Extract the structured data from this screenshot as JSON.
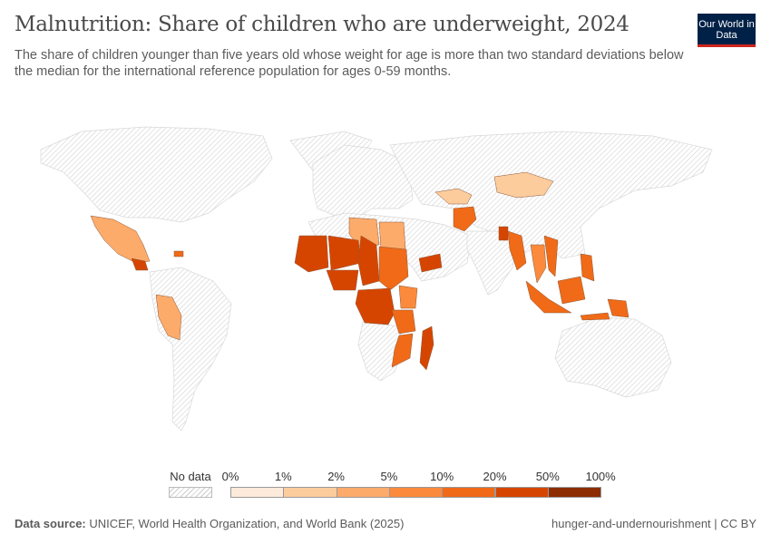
{
  "header": {
    "title": "Malnutrition: Share of children who are underweight, 2024",
    "subtitle": "The share of children younger than five years old whose weight for age is more than two standard deviations below the median for the international reference population for ages 0-59 months.",
    "logo": "Our World in Data"
  },
  "chart_data": {
    "type": "choropleth-map",
    "year": "2024",
    "legend": {
      "no_data_label": "No data",
      "bins": [
        "0%",
        "1%",
        "2%",
        "5%",
        "10%",
        "20%",
        "50%",
        "100%"
      ],
      "colors": [
        "#feeadb",
        "#fdcc9d",
        "#fdab6b",
        "#fb8a3c",
        "#f06a18",
        "#d64500",
        "#8c2d04"
      ],
      "no_data_pattern": "hatched-gray"
    },
    "regions": [
      {
        "name": "Mexico",
        "bin": 2
      },
      {
        "name": "Guatemala",
        "bin": 5
      },
      {
        "name": "Haiti",
        "bin": 4
      },
      {
        "name": "Peru",
        "bin": 2
      },
      {
        "name": "Mongolia",
        "bin": 1
      },
      {
        "name": "Afghanistan",
        "bin": 4
      },
      {
        "name": "Kazakhstan",
        "bin": 1
      },
      {
        "name": "Libya",
        "bin": 2
      },
      {
        "name": "Egypt",
        "bin": 2
      },
      {
        "name": "Mali",
        "bin": 5
      },
      {
        "name": "Niger",
        "bin": 5
      },
      {
        "name": "Chad",
        "bin": 5
      },
      {
        "name": "Sudan",
        "bin": 4
      },
      {
        "name": "Nigeria",
        "bin": 5
      },
      {
        "name": "Democratic Republic of Congo",
        "bin": 5
      },
      {
        "name": "Kenya",
        "bin": 3
      },
      {
        "name": "Tanzania",
        "bin": 4
      },
      {
        "name": "Yemen",
        "bin": 5
      },
      {
        "name": "Madagascar",
        "bin": 5
      },
      {
        "name": "Mozambique",
        "bin": 4
      },
      {
        "name": "Myanmar",
        "bin": 4
      },
      {
        "name": "Bangladesh",
        "bin": 5
      },
      {
        "name": "Thailand",
        "bin": 3
      },
      {
        "name": "Vietnam",
        "bin": 4
      },
      {
        "name": "Indonesia",
        "bin": 4
      },
      {
        "name": "Philippines",
        "bin": 4
      },
      {
        "name": "Papua New Guinea",
        "bin": 4
      }
    ]
  },
  "footer": {
    "source_label": "Data source:",
    "source": "UNICEF, World Health Organization, and World Bank (2025)",
    "right": "hunger-and-undernourishment | CC BY"
  }
}
